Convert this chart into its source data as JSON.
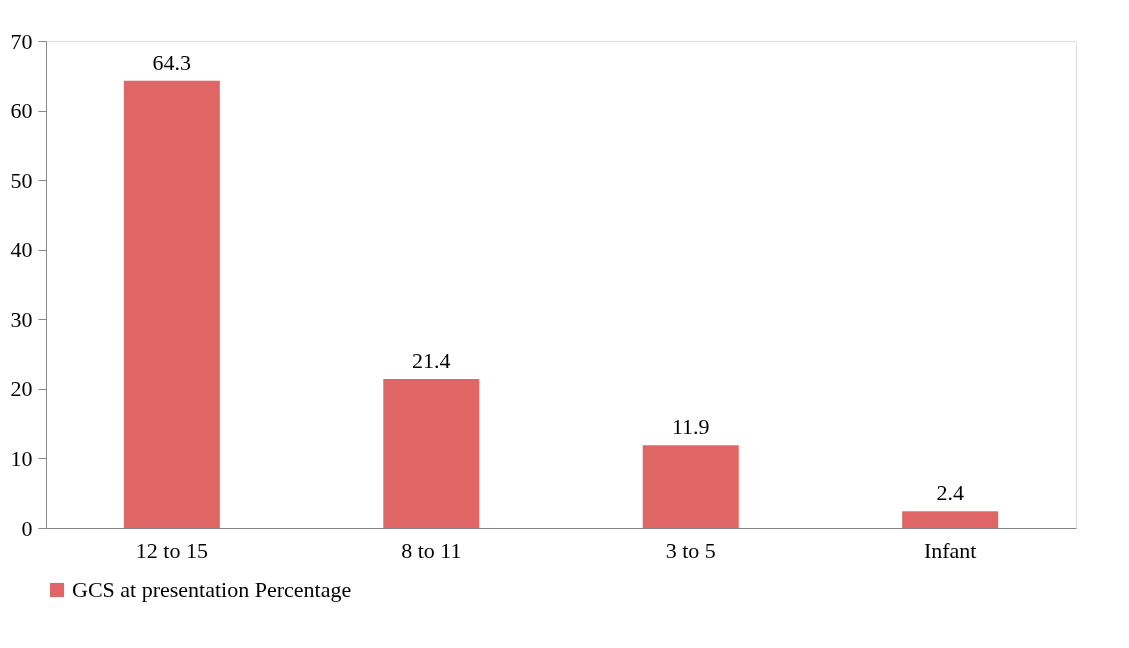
{
  "chart_data": {
    "type": "bar",
    "categories": [
      "12 to 15",
      "8 to 11",
      "3 to 5",
      "Infant"
    ],
    "series": [
      {
        "name": "GCS at presentation Percentage",
        "color": "#e06666",
        "values": [
          64.3,
          21.4,
          11.9,
          2.4
        ]
      }
    ],
    "ylim": [
      0,
      70
    ],
    "yticks": [
      0,
      10,
      20,
      30,
      40,
      50,
      60,
      70
    ],
    "data_labels": true,
    "grid": false,
    "legend": "bottom"
  }
}
